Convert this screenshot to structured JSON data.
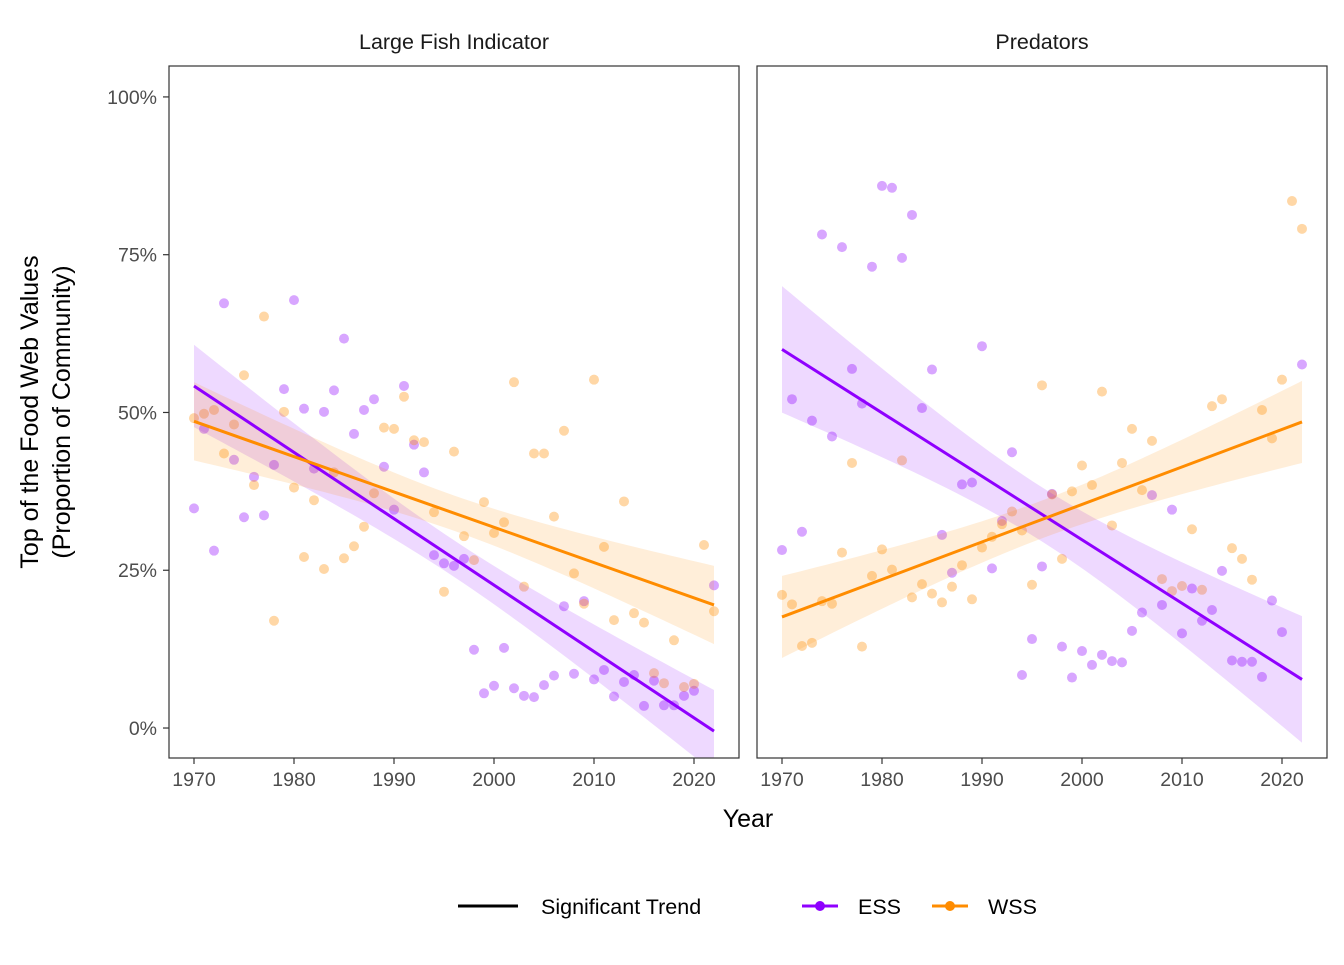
{
  "chart_data": {
    "type": "scatter",
    "title": "",
    "xlabel": "Year",
    "ylabel": "Top of the Food Web Values\n(Proportion of Community)",
    "xlim": [
      1967.5,
      2024.5
    ],
    "ylim": [
      -4.75,
      104.9
    ],
    "x_ticks": [
      1970,
      1980,
      1990,
      2000,
      2010,
      2020
    ],
    "y_ticks": [
      0,
      25,
      50,
      75,
      100
    ],
    "y_tick_labels": [
      "0%",
      "25%",
      "50%",
      "75%",
      "100%"
    ],
    "grid": false,
    "legend": {
      "placement": "bottom",
      "trend_label": "Significant Trend",
      "entries": [
        {
          "name": "ESS",
          "color": "#8F00FF"
        },
        {
          "name": "WSS",
          "color": "#FF8C00"
        }
      ]
    },
    "panels": [
      {
        "title": "Large Fish Indicator",
        "series": [
          {
            "name": "ESS",
            "color": "#8F00FF",
            "years": [
              1970,
              1971,
              1972,
              1973,
              1974,
              1975,
              1976,
              1977,
              1978,
              1979,
              1980,
              1981,
              1982,
              1983,
              1984,
              1985,
              1986,
              1987,
              1988,
              1989,
              1990,
              1991,
              1992,
              1993,
              1994,
              1995,
              1996,
              1997,
              1998,
              1999,
              2000,
              2001,
              2002,
              2003,
              2004,
              2005,
              2006,
              2007,
              2008,
              2009,
              2010,
              2011,
              2012,
              2013,
              2014,
              2015,
              2016,
              2017,
              2018,
              2019,
              2020,
              2022
            ],
            "values": [
              34.8,
              47.4,
              28.1,
              67.3,
              42.5,
              33.4,
              39.8,
              33.7,
              41.7,
              53.7,
              67.8,
              50.6,
              41.1,
              50.1,
              53.5,
              61.7,
              46.6,
              50.4,
              52.1,
              41.4,
              34.6,
              54.2,
              44.9,
              40.5,
              27.4,
              26.1,
              25.7,
              26.8,
              12.4,
              5.5,
              6.7,
              12.7,
              6.3,
              5.1,
              4.9,
              6.8,
              8.3,
              19.3,
              8.6,
              20.1,
              7.7,
              9.2,
              5.0,
              7.3,
              8.4,
              3.5,
              7.5,
              3.6,
              3.6,
              5.1,
              5.9,
              22.6
            ],
            "trend": {
              "years": [
                1970,
                1996,
                2022
              ],
              "fit": [
                54.2,
                26.9,
                -0.5
              ],
              "lower": [
                47.7,
                24.0,
                -7.0
              ],
              "upper": [
                60.8,
                29.8,
                6.0
              ]
            }
          },
          {
            "name": "WSS",
            "color": "#FF8C00",
            "years": [
              1970,
              1971,
              1972,
              1973,
              1974,
              1975,
              1976,
              1977,
              1978,
              1979,
              1980,
              1981,
              1982,
              1983,
              1984,
              1985,
              1986,
              1987,
              1988,
              1989,
              1990,
              1991,
              1992,
              1993,
              1994,
              1995,
              1996,
              1997,
              1998,
              1999,
              2000,
              2001,
              2002,
              2003,
              2004,
              2005,
              2006,
              2007,
              2008,
              2009,
              2010,
              2011,
              2012,
              2013,
              2014,
              2015,
              2016,
              2017,
              2018,
              2019,
              2020,
              2021,
              2022
            ],
            "values": [
              49.1,
              49.8,
              50.4,
              43.5,
              48.1,
              55.9,
              38.5,
              65.2,
              17.0,
              50.1,
              38.1,
              27.1,
              36.1,
              25.2,
              40.5,
              26.9,
              28.8,
              31.9,
              37.2,
              47.6,
              47.4,
              52.5,
              45.6,
              45.3,
              34.2,
              21.6,
              43.8,
              30.4,
              26.6,
              35.8,
              30.9,
              32.6,
              54.8,
              22.4,
              43.5,
              43.5,
              33.5,
              47.1,
              24.5,
              19.7,
              55.2,
              28.7,
              17.1,
              35.9,
              18.2,
              16.7,
              8.7,
              7.1,
              13.9,
              6.5,
              7.0,
              29.0,
              18.5
            ],
            "trend": {
              "years": [
                1970,
                1996,
                2022
              ],
              "fit": [
                48.6,
                34.1,
                19.5
              ],
              "lower": [
                42.3,
                31.3,
                13.4
              ],
              "upper": [
                54.9,
                36.9,
                25.6
              ]
            }
          }
        ]
      },
      {
        "title": "Predators",
        "series": [
          {
            "name": "ESS",
            "color": "#8F00FF",
            "years": [
              1970,
              1971,
              1972,
              1973,
              1974,
              1975,
              1976,
              1977,
              1978,
              1979,
              1980,
              1981,
              1982,
              1983,
              1984,
              1985,
              1986,
              1987,
              1988,
              1989,
              1990,
              1991,
              1992,
              1993,
              1994,
              1995,
              1996,
              1997,
              1998,
              1999,
              2000,
              2001,
              2002,
              2003,
              2004,
              2005,
              2006,
              2007,
              2008,
              2009,
              2010,
              2011,
              2012,
              2013,
              2014,
              2015,
              2016,
              2017,
              2018,
              2019,
              2020,
              2022
            ],
            "values": [
              28.2,
              52.1,
              31.1,
              48.7,
              78.2,
              46.2,
              76.2,
              56.9,
              51.4,
              73.1,
              85.9,
              85.6,
              74.5,
              81.3,
              50.7,
              56.8,
              30.6,
              24.6,
              38.6,
              38.9,
              60.5,
              25.3,
              32.8,
              43.7,
              8.4,
              14.1,
              25.6,
              37.1,
              12.9,
              8.0,
              12.2,
              10.0,
              11.6,
              10.6,
              10.4,
              15.4,
              18.3,
              36.9,
              19.5,
              34.6,
              15.0,
              22.1,
              17.0,
              18.7,
              24.9,
              10.7,
              10.5,
              10.5,
              8.1,
              20.2,
              15.2,
              57.6
            ],
            "trend": {
              "years": [
                1970,
                1996,
                2022
              ],
              "fit": [
                60.0,
                33.9,
                7.7
              ],
              "lower": [
                50.2,
                29.6,
                -2.5
              ],
              "upper": [
                69.9,
                38.2,
                17.9
              ]
            }
          },
          {
            "name": "WSS",
            "color": "#FF8C00",
            "years": [
              1970,
              1971,
              1972,
              1973,
              1974,
              1975,
              1976,
              1977,
              1978,
              1979,
              1980,
              1981,
              1982,
              1983,
              1984,
              1985,
              1986,
              1987,
              1988,
              1989,
              1990,
              1991,
              1992,
              1993,
              1994,
              1995,
              1996,
              1997,
              1998,
              1999,
              2000,
              2001,
              2002,
              2003,
              2004,
              2005,
              2006,
              2007,
              2008,
              2009,
              2010,
              2011,
              2012,
              2013,
              2014,
              2015,
              2016,
              2017,
              2018,
              2019,
              2020,
              2021,
              2022
            ],
            "values": [
              21.1,
              19.6,
              13.0,
              13.5,
              20.1,
              19.7,
              27.8,
              42.0,
              12.9,
              24.1,
              28.3,
              25.1,
              42.4,
              20.7,
              22.8,
              21.3,
              19.9,
              22.4,
              25.8,
              20.4,
              28.6,
              30.3,
              32.3,
              34.3,
              31.3,
              22.7,
              54.3,
              37.0,
              26.8,
              37.5,
              41.6,
              38.5,
              53.3,
              32.1,
              42.0,
              47.4,
              37.7,
              45.5,
              23.6,
              21.7,
              22.5,
              31.5,
              21.9,
              51.0,
              52.1,
              28.5,
              26.8,
              23.5,
              50.4,
              45.9,
              55.2,
              83.5,
              79.1
            ],
            "trend": {
              "years": [
                1970,
                1996,
                2022
              ],
              "fit": [
                17.6,
                33.0,
                48.5
              ],
              "lower": [
                11.1,
                30.0,
                42.0
              ],
              "upper": [
                24.1,
                36.0,
                55.0
              ]
            }
          }
        ]
      }
    ]
  }
}
